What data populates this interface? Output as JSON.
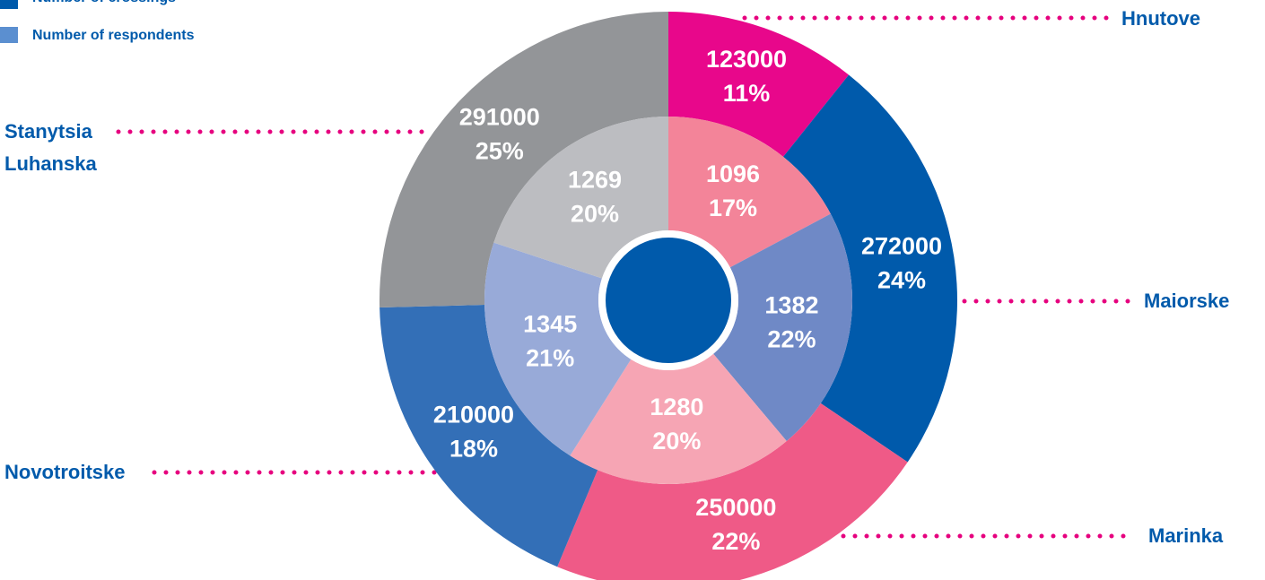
{
  "chart_data": {
    "type": "donut",
    "categories": [
      "Hnutove",
      "Maiorske",
      "Marinka",
      "Novotroitske",
      "Stanytsia Luhanska"
    ],
    "series": [
      {
        "name": "Number of crossings",
        "color": "#005aab",
        "colors": [
          "#e8078b",
          "#005aab",
          "#ef5a87",
          "#336fb7",
          "#939598"
        ],
        "values": [
          123000,
          272000,
          250000,
          210000,
          291000
        ],
        "percent_labels": [
          "11%",
          "24%",
          "22%",
          "18%",
          "25%"
        ]
      },
      {
        "name": "Number of respondents",
        "color": "#5b8fd0",
        "colors": [
          "#f38499",
          "#6f89c6",
          "#f6a5b4",
          "#98aad8",
          "#bcbdc1"
        ],
        "values": [
          1096,
          1382,
          1280,
          1345,
          1269
        ],
        "percent_labels": [
          "17%",
          "22%",
          "20%",
          "21%",
          "20%"
        ]
      }
    ]
  }
}
